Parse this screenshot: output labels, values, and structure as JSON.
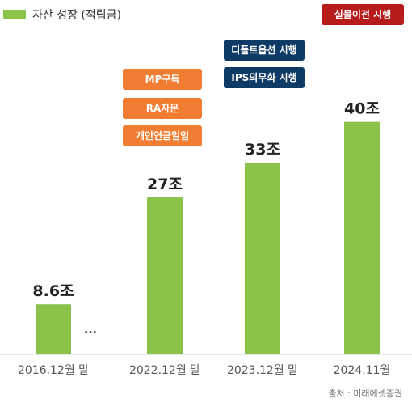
{
  "legend": {
    "label": "자산 성장 (적립금)",
    "color": "#8bc34a"
  },
  "annotations": {
    "orange": [
      "MP구독",
      "RA자문",
      "개인연금일임"
    ],
    "navy": [
      "디폴트옵션 시행",
      "IPS의무화 시행"
    ],
    "red": "실물이전 시행",
    "colors": {
      "orange": "#f07d32",
      "navy": "#0e3a66",
      "red": "#b71c1c"
    }
  },
  "ellipsis": "...",
  "source": "출처 : 미래에셋증권",
  "chart_data": {
    "type": "bar",
    "title": "",
    "xlabel": "",
    "ylabel": "",
    "categories": [
      "2016.12월 말",
      "2022.12월 말",
      "2023.12월 말",
      "2024.11월"
    ],
    "series": [
      {
        "name": "자산 성장 (적립금)",
        "values": [
          8.6,
          27,
          33,
          40
        ],
        "labels": [
          "8.6조",
          "27조",
          "33조",
          "40조"
        ]
      }
    ],
    "ylim": [
      0,
      49
    ],
    "bar_color": "#8bc34a",
    "grid": false
  }
}
